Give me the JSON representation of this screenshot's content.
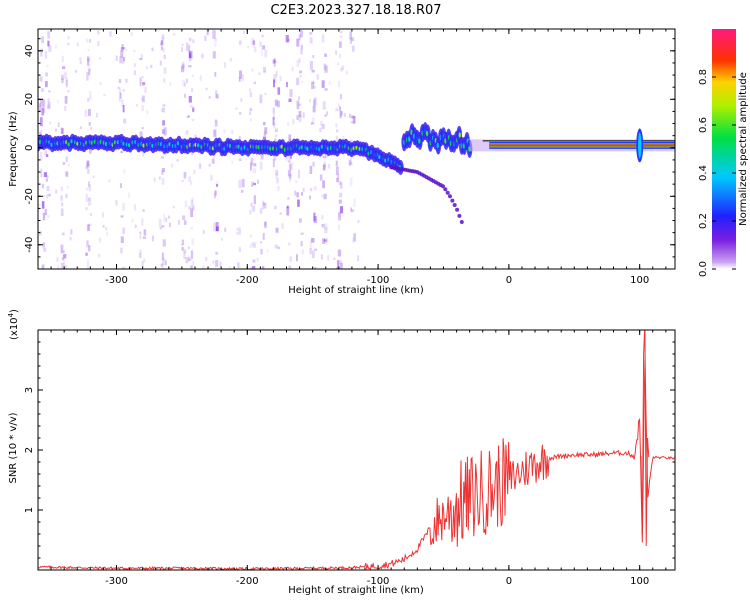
{
  "title": "C2E3.2023.327.18.18.R07",
  "chart_data": [
    {
      "type": "heatmap",
      "xlabel": "Height of straight line (km)",
      "ylabel": "Frequency (Hz)",
      "xlim": [
        -360,
        127
      ],
      "ylim": [
        -50,
        49
      ],
      "xticks": [
        "-300",
        "-200",
        "-100",
        "0",
        "100"
      ],
      "yticks": [
        "40",
        "20",
        "0",
        "-20",
        "-40"
      ],
      "colorbar": {
        "label": "Normalized spectral amplitude",
        "range": [
          0,
          1
        ],
        "ticks": [
          "0.0",
          "0.2",
          "0.4",
          "0.6",
          "0.8"
        ]
      },
      "main_trace": {
        "x": [
          -360,
          -300,
          -250,
          -200,
          -150,
          -120,
          -100,
          -90,
          -80
        ],
        "frequency": [
          2,
          2,
          1,
          0,
          0,
          0,
          -3,
          -6,
          -8
        ]
      },
      "branch_trace": {
        "x": [
          -80,
          -70,
          -60,
          -50,
          -40,
          -30
        ],
        "frequency": [
          4,
          5,
          4,
          3,
          3,
          2
        ]
      },
      "diverging_trace": {
        "x": [
          -90,
          -70,
          -50,
          -45,
          -40,
          -35
        ],
        "frequency": [
          -8,
          -10,
          -16,
          -20,
          -25,
          -32
        ]
      },
      "carrier_line": {
        "x_start": -15,
        "x_end": 127,
        "frequency": 1,
        "spike_x": 100,
        "spike_range": [
          -6,
          8
        ]
      }
    },
    {
      "type": "line",
      "xlabel": "Height of straight line (km)",
      "ylabel": "SNR (10 * v/v)",
      "scale_label": "(x10",
      "scale_exponent": "4",
      "scale_close": ")",
      "xlim": [
        -360,
        127
      ],
      "ylim": [
        0,
        4
      ],
      "xticks": [
        "-300",
        "-200",
        "-100",
        "0",
        "100"
      ],
      "yticks": [
        "1",
        "2",
        "3"
      ],
      "color": "#ee3333",
      "series": [
        {
          "x": [
            -360,
            -300,
            -250,
            -200,
            -150,
            -120,
            -100,
            -90,
            -80,
            -70,
            -60,
            -50,
            -40,
            -30,
            -20,
            -10,
            0,
            10,
            20,
            30,
            40,
            50,
            60,
            70,
            80,
            90,
            96,
            100,
            102,
            104,
            106,
            110,
            120,
            127
          ],
          "y": [
            0.05,
            0.03,
            0.03,
            0.02,
            0.03,
            0.04,
            0.07,
            0.1,
            0.18,
            0.35,
            0.7,
            0.9,
            1.05,
            1.2,
            1.3,
            1.4,
            1.5,
            1.65,
            1.78,
            1.86,
            1.9,
            1.92,
            1.92,
            1.93,
            1.95,
            1.95,
            1.9,
            2.5,
            0.5,
            3.6,
            1.2,
            1.88,
            1.87,
            1.86
          ]
        }
      ]
    }
  ]
}
